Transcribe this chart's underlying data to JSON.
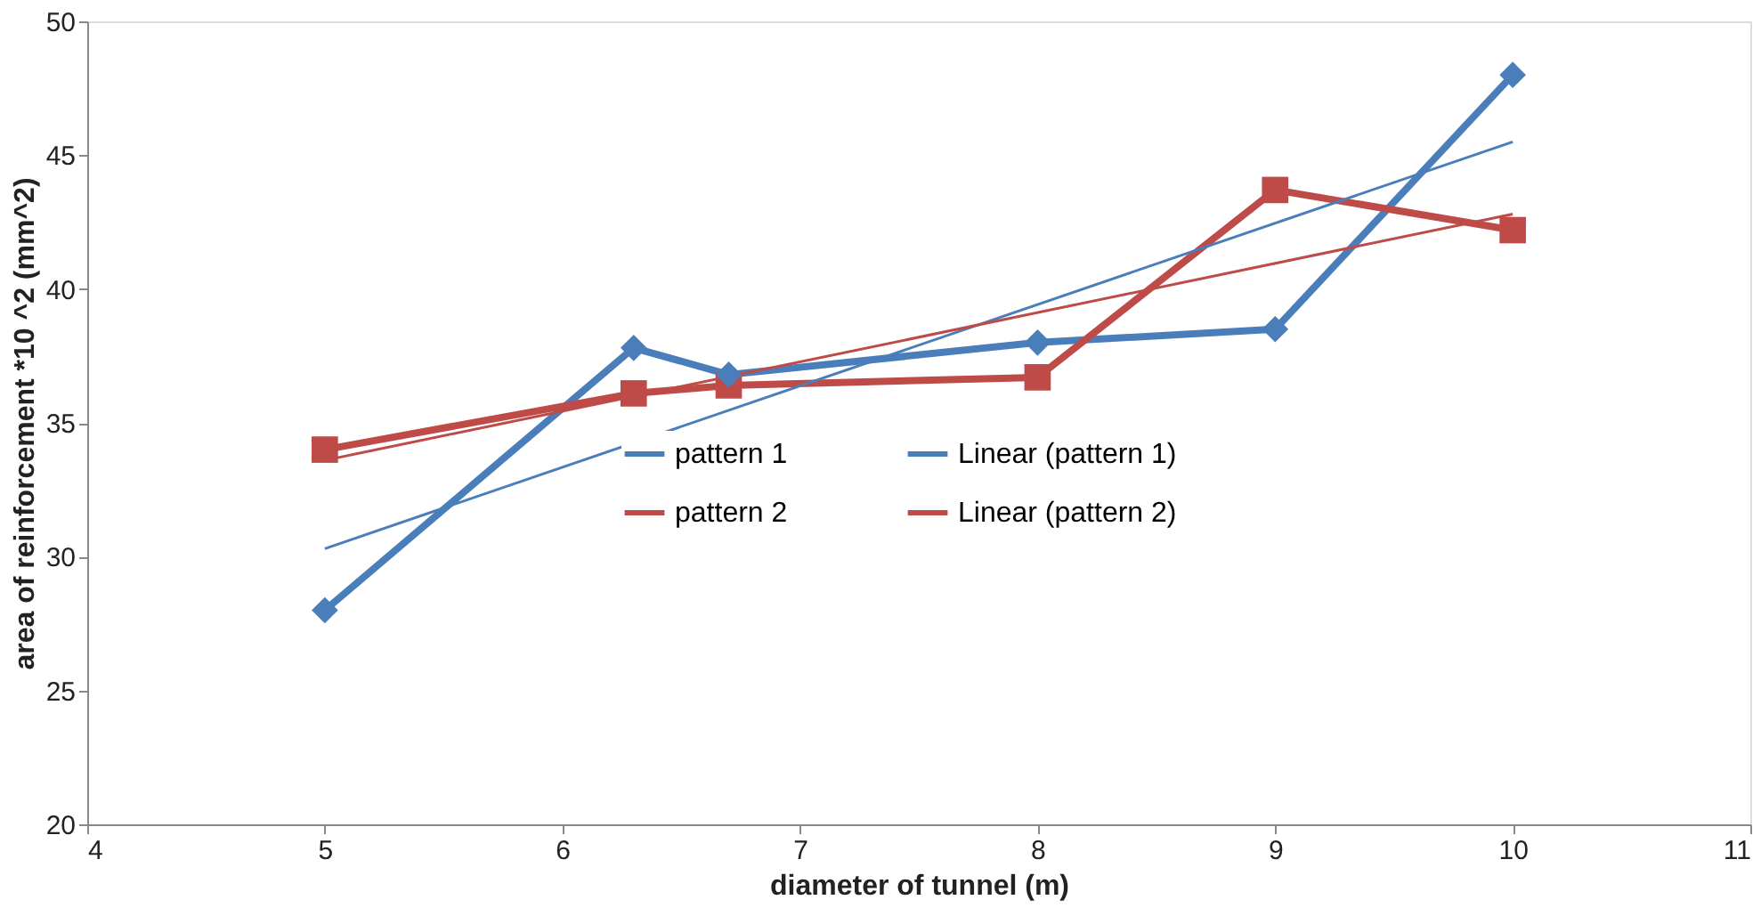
{
  "chart_data": {
    "type": "line",
    "xlabel": "diameter of tunnel (m)",
    "ylabel": "area of reinforcement *10 ^2 (mm^2)",
    "xlim": [
      4,
      11
    ],
    "xticks": [
      4,
      5,
      6,
      7,
      8,
      9,
      10,
      11
    ],
    "ylim": [
      20,
      50
    ],
    "yticks": [
      20,
      25,
      30,
      35,
      40,
      45,
      50
    ],
    "grid": false,
    "legend": "center",
    "series": [
      {
        "name": "pattern 1",
        "color": "#4a7ebb",
        "marker": "diamond",
        "x": [
          5,
          6.3,
          6.7,
          8,
          9,
          10
        ],
        "values": [
          28,
          37.8,
          36.8,
          38,
          38.5,
          48
        ]
      },
      {
        "name": "pattern 2",
        "color": "#be4b48",
        "marker": "square",
        "x": [
          5,
          6.3,
          6.7,
          8,
          9,
          10
        ],
        "values": [
          34,
          36.1,
          36.4,
          36.7,
          43.7,
          42.2
        ]
      },
      {
        "name": "Linear (pattern 1)",
        "color": "#4a7ebb",
        "marker": "none",
        "x": [
          5,
          10
        ],
        "values": [
          30.3,
          45.5
        ]
      },
      {
        "name": "Linear (pattern 2)",
        "color": "#be4b48",
        "marker": "none",
        "x": [
          5,
          10
        ],
        "values": [
          33.6,
          42.8
        ]
      }
    ]
  }
}
